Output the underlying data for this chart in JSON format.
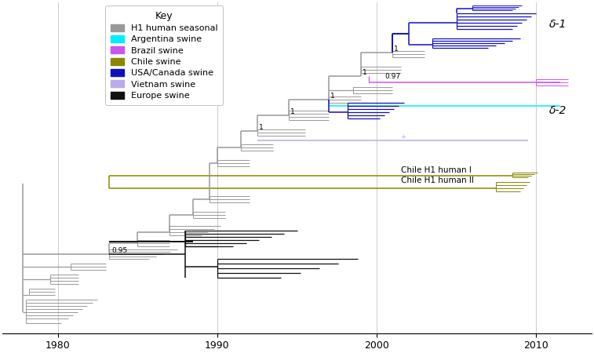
{
  "xlim": [
    1976.5,
    2013.5
  ],
  "ylim": [
    0,
    210
  ],
  "xticks": [
    1980,
    1990,
    2000,
    2010
  ],
  "colors": {
    "human_seasonal": "#999999",
    "argentina_swine": "#00EEFF",
    "brazil_swine": "#CC55EE",
    "chile_swine": "#888800",
    "usa_canada_swine": "#1111BB",
    "vietnam_swine": "#BBAAEE",
    "europe_swine": "#111111"
  },
  "legend_items": [
    {
      "label": "H1 human seasonal",
      "color": "#999999"
    },
    {
      "label": "Argentina swine",
      "color": "#00EEFF"
    },
    {
      "label": "Brazil swine",
      "color": "#CC55EE"
    },
    {
      "label": "Chile swine",
      "color": "#888800"
    },
    {
      "label": "USA/Canada swine",
      "color": "#1111BB"
    },
    {
      "label": "Vietnam swine",
      "color": "#BBAAEE"
    },
    {
      "label": "Europe swine",
      "color": "#111111"
    }
  ],
  "gridlines": [
    1980,
    1990,
    2000,
    2010
  ],
  "background_color": "#FFFFFF"
}
